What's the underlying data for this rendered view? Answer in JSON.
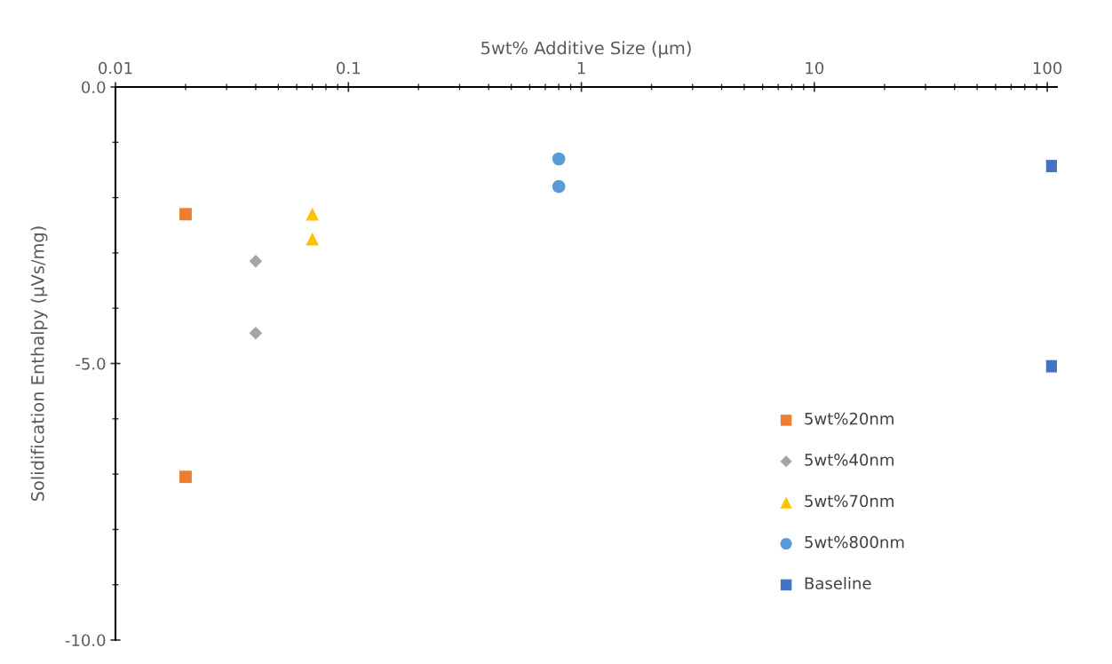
{
  "chart_data": {
    "type": "scatter",
    "xlabel": "5wt% Additive Size (µm)",
    "ylabel": "Solidification Enthalpy (µVs/mg)",
    "log": "x",
    "xlim": [
      0.01,
      110
    ],
    "xticks": [
      {
        "value": 0.01,
        "label": "0.01"
      },
      {
        "value": 0.1,
        "label": "0.1"
      },
      {
        "value": 1,
        "label": "1"
      },
      {
        "value": 10,
        "label": "10"
      },
      {
        "value": 100,
        "label": "100"
      }
    ],
    "ylim": [
      -10,
      0
    ],
    "yticks": [
      {
        "value": -10,
        "label": "-10.0"
      },
      {
        "value": -5,
        "label": "-5.0"
      },
      {
        "value": 0,
        "label": "0.0"
      }
    ],
    "grid": false,
    "legend": "bottom right",
    "series": [
      {
        "name": "5wt%20nm",
        "color": "#ed7d31",
        "marker": "square",
        "x": [
          0.02,
          0.02
        ],
        "values": [
          -2.3,
          -7.05
        ]
      },
      {
        "name": "5wt%40nm",
        "color": "#a5a5a5",
        "marker": "diamond",
        "x": [
          0.04,
          0.04
        ],
        "values": [
          -3.15,
          -4.45
        ]
      },
      {
        "name": "5wt%70nm",
        "color": "#ffc000",
        "marker": "triangle",
        "x": [
          0.07,
          0.07
        ],
        "values": [
          -2.3,
          -2.75
        ]
      },
      {
        "name": "5wt%800nm",
        "color": "#5b9bd5",
        "marker": "circle",
        "x": [
          0.8,
          0.8
        ],
        "values": [
          -1.3,
          -1.8
        ]
      },
      {
        "name": "Baseline",
        "color": "#4472c4",
        "marker": "square",
        "x": [
          105,
          105
        ],
        "values": [
          -1.43,
          -5.05
        ]
      }
    ]
  }
}
